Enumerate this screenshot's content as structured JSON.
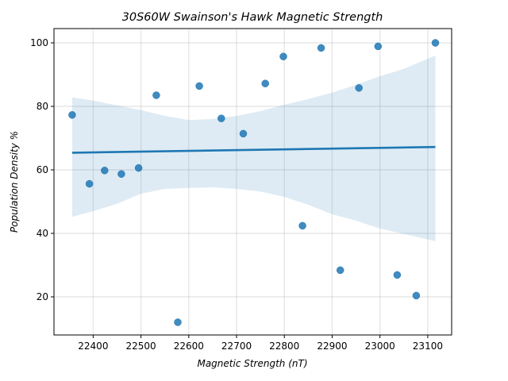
{
  "chart_data": {
    "type": "scatter",
    "title": "30S60W Swainson's Hawk Magnetic Strength",
    "xlabel": "Magnetic Strength (nT)",
    "ylabel": "Population Density %",
    "xlim": [
      22318,
      23150
    ],
    "ylim": [
      8,
      104.5
    ],
    "xticks": [
      22400,
      22500,
      22600,
      22700,
      22800,
      22900,
      23000,
      23100
    ],
    "yticks": [
      20,
      40,
      60,
      80,
      100
    ],
    "grid": true,
    "color": "#1f77b4",
    "points": [
      {
        "x": 22356,
        "y": 77.3
      },
      {
        "x": 22392,
        "y": 55.6
      },
      {
        "x": 22424,
        "y": 59.8
      },
      {
        "x": 22459,
        "y": 58.7
      },
      {
        "x": 22495,
        "y": 60.6
      },
      {
        "x": 22532,
        "y": 83.5
      },
      {
        "x": 22577,
        "y": 12.0
      },
      {
        "x": 22622,
        "y": 86.4
      },
      {
        "x": 22668,
        "y": 76.2
      },
      {
        "x": 22714,
        "y": 71.4
      },
      {
        "x": 22760,
        "y": 87.2
      },
      {
        "x": 22798,
        "y": 95.7
      },
      {
        "x": 22838,
        "y": 42.4
      },
      {
        "x": 22877,
        "y": 98.4
      },
      {
        "x": 22917,
        "y": 28.4
      },
      {
        "x": 22956,
        "y": 85.8
      },
      {
        "x": 22996,
        "y": 98.9
      },
      {
        "x": 23036,
        "y": 26.9
      },
      {
        "x": 23076,
        "y": 20.4
      },
      {
        "x": 23116,
        "y": 100.0
      }
    ],
    "regression": {
      "x": [
        22356,
        23116
      ],
      "y": [
        65.4,
        67.2
      ]
    },
    "confidence_band": {
      "x": [
        22356,
        22400,
        22450,
        22500,
        22550,
        22600,
        22650,
        22700,
        22750,
        22800,
        22850,
        22900,
        22950,
        23000,
        23050,
        23116
      ],
      "upper": [
        82.8,
        81.8,
        80.3,
        78.8,
        77.0,
        75.7,
        76.0,
        77.0,
        78.5,
        80.5,
        82.3,
        84.3,
        86.8,
        89.5,
        91.8,
        96.0
      ],
      "lower": [
        45.2,
        47.0,
        49.3,
        52.5,
        54.0,
        54.3,
        54.5,
        54.0,
        53.2,
        51.5,
        49.0,
        46.0,
        44.0,
        41.5,
        39.8,
        37.5
      ]
    }
  }
}
